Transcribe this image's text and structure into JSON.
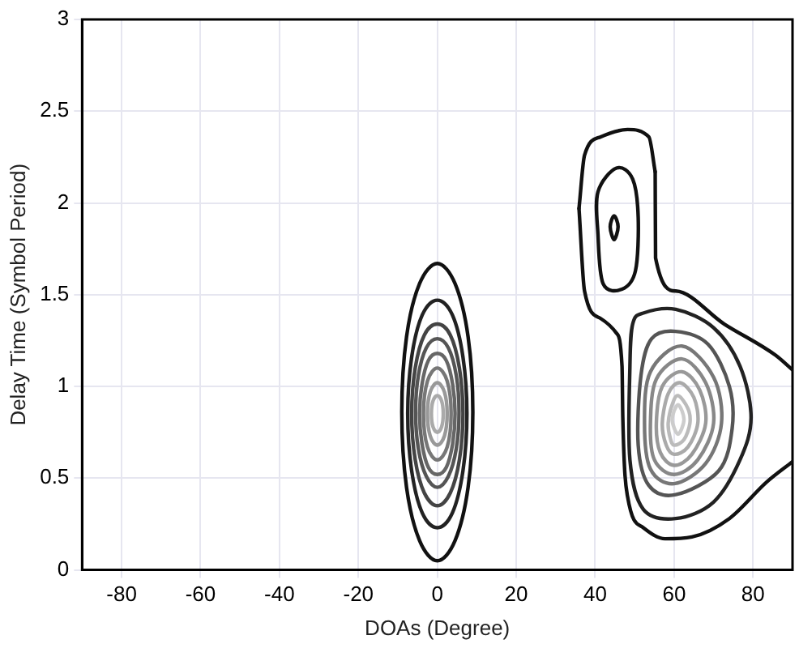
{
  "chart_data": {
    "type": "line",
    "xlabel": "DOAs (Degree)",
    "ylabel": "Delay Time (Symbol Period)",
    "xlim": [
      -90,
      90
    ],
    "xticks": [
      -80,
      -60,
      -40,
      -20,
      0,
      20,
      40,
      60,
      80
    ],
    "ylim": [
      0,
      3
    ],
    "yticks": [
      0,
      0.5,
      1,
      1.5,
      2,
      2.5,
      3
    ],
    "grid": true,
    "marker": "none",
    "line_style": "solid",
    "series": [
      {
        "color": "#111111",
        "x": [
          35.9,
          37.3,
          41.4,
          48.2,
          53.6,
          55.2
        ],
        "values": [
          1.97,
          2.26,
          2.36,
          2.4,
          2.36,
          2.17
        ]
      },
      {
        "color": "#111111",
        "x": [
          55.2,
          55.3,
          60.4,
          72.7,
          85.7,
          90
        ],
        "values": [
          2.17,
          1.7,
          1.52,
          1.34,
          1.17,
          1.09
        ]
      },
      {
        "color": "#111111",
        "x": [
          35.9,
          37.3,
          41.4,
          45.4,
          46.8,
          47,
          48.2,
          52.2,
          57.7,
          64.5,
          74,
          83.5,
          90
        ],
        "values": [
          1.97,
          1.52,
          1.37,
          1.29,
          1.11,
          0.83,
          0.4,
          0.23,
          0.17,
          0.18,
          0.28,
          0.48,
          0.59
        ]
      }
    ]
  }
}
